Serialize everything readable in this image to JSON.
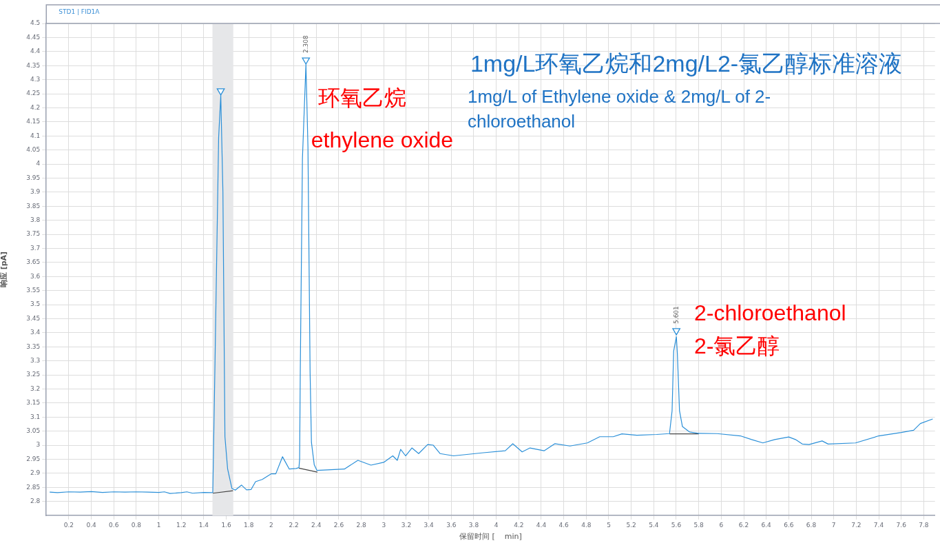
{
  "chart_data": {
    "type": "line",
    "title": "1mg/L环氧乙烷和2mg/L2-氯乙醇标准溶液",
    "subtitle": "1mg/L of Ethylene oxide & 2mg/L of 2-chloroethanol",
    "xlabel": "保留时间 [    min]",
    "ylabel": "响应 [pA]",
    "annotations": [
      "STD1 | FID1A",
      "环氧乙烷",
      "ethylene oxide",
      "2-chloroethanol",
      "2-氯乙醇",
      {
        "text": "2.308",
        "x": 2.308,
        "y": 4.37
      },
      {
        "text": "5.601",
        "x": 5.601,
        "y": 3.407
      }
    ],
    "xlim": [
      0,
      7.9
    ],
    "ylim": [
      2.75,
      4.5
    ],
    "xticks": [
      0.2,
      0.4,
      0.6,
      0.8,
      1,
      1.2,
      1.4,
      1.6,
      1.8,
      2,
      2.2,
      2.4,
      2.6,
      2.8,
      3,
      3.2,
      3.4,
      3.6,
      3.8,
      4,
      4.2,
      4.4,
      4.6,
      4.8,
      5,
      5.2,
      5.4,
      5.6,
      5.8,
      6,
      6.2,
      6.4,
      6.6,
      6.8,
      7,
      7.2,
      7.4,
      7.6,
      7.8
    ],
    "yticks": [
      2.8,
      2.85,
      2.9,
      2.95,
      3,
      3.05,
      3.1,
      3.15,
      3.2,
      3.25,
      3.3,
      3.35,
      3.4,
      3.45,
      3.5,
      3.55,
      3.6,
      3.65,
      3.7,
      3.75,
      3.8,
      3.85,
      3.9,
      3.95,
      4,
      4.05,
      4.1,
      4.15,
      4.2,
      4.25,
      4.3,
      4.35,
      4.4,
      4.45,
      4.5
    ],
    "grid": true,
    "legend": false,
    "bands": [
      {
        "axis": "x",
        "from": 1.477,
        "to": 1.662,
        "color": "#e6e7e9"
      }
    ],
    "series": [
      {
        "color": "#2a8fd8",
        "x": [
          0.03,
          0.1,
          0.2,
          0.3,
          0.4,
          0.5,
          0.6,
          0.7,
          0.8,
          0.9,
          1.0,
          1.05,
          1.1,
          1.2,
          1.25,
          1.3,
          1.4,
          1.47,
          1.48,
          1.5,
          1.532,
          1.551,
          1.57,
          1.588,
          1.612,
          1.65,
          1.68,
          1.735,
          1.78,
          1.82,
          1.86,
          1.92,
          2.0,
          2.04,
          2.1,
          2.12,
          2.16,
          2.22,
          2.246,
          2.252,
          2.258,
          2.277,
          2.308,
          2.326,
          2.345,
          2.357,
          2.382,
          2.406,
          2.5,
          2.65,
          2.77,
          2.886,
          3.0,
          3.08,
          3.12,
          3.15,
          3.194,
          3.25,
          3.31,
          3.39,
          3.44,
          3.5,
          3.62,
          3.886,
          4.08,
          4.147,
          4.23,
          4.3,
          4.425,
          4.52,
          4.655,
          4.81,
          4.92,
          5.04,
          5.117,
          5.25,
          5.425,
          5.54,
          5.563,
          5.577,
          5.601,
          5.61,
          5.629,
          5.655,
          5.717,
          5.797,
          5.963,
          6.17,
          6.27,
          6.37,
          6.476,
          6.6,
          6.66,
          6.72,
          6.78,
          6.897,
          6.95,
          7.194,
          7.4,
          7.6,
          7.71,
          7.77,
          7.88
        ],
        "values": [
          2.833,
          2.831,
          2.834,
          2.833,
          2.835,
          2.832,
          2.834,
          2.833,
          2.834,
          2.833,
          2.832,
          2.834,
          2.828,
          2.831,
          2.834,
          2.829,
          2.832,
          2.831,
          2.832,
          3.3,
          4.094,
          4.244,
          3.9,
          3.03,
          2.915,
          2.846,
          2.84,
          2.858,
          2.841,
          2.842,
          2.87,
          2.878,
          2.898,
          2.898,
          2.959,
          2.944,
          2.915,
          2.917,
          2.92,
          2.95,
          3.27,
          4.02,
          4.354,
          4.06,
          3.26,
          3.01,
          2.93,
          2.91,
          2.912,
          2.915,
          2.946,
          2.929,
          2.939,
          2.962,
          2.946,
          2.985,
          2.962,
          2.99,
          2.97,
          3.002,
          3.0,
          2.97,
          2.962,
          2.973,
          2.98,
          3.005,
          2.976,
          2.99,
          2.98,
          3.005,
          2.997,
          3.008,
          3.03,
          3.03,
          3.04,
          3.035,
          3.038,
          3.041,
          3.122,
          3.334,
          3.386,
          3.325,
          3.122,
          3.066,
          3.047,
          3.042,
          3.041,
          3.033,
          3.02,
          3.008,
          3.02,
          3.029,
          3.02,
          3.004,
          3.002,
          3.015,
          3.004,
          3.008,
          3.033,
          3.045,
          3.053,
          3.077,
          3.093
        ]
      },
      {
        "color": "#444444",
        "x": [
          1.48,
          1.66
        ],
        "values": [
          2.829,
          2.838
        ]
      },
      {
        "color": "#444444",
        "x": [
          2.246,
          2.41
        ],
        "values": [
          2.918,
          2.904
        ]
      },
      {
        "color": "#444444",
        "x": [
          5.54,
          5.8
        ],
        "values": [
          3.04,
          3.04
        ]
      },
      {
        "type": "scatter",
        "color": "#2a8fd8",
        "marker": "triangle",
        "x": [
          1.551,
          2.308,
          5.601
        ],
        "values": [
          4.26,
          4.37,
          3.407
        ]
      }
    ]
  }
}
